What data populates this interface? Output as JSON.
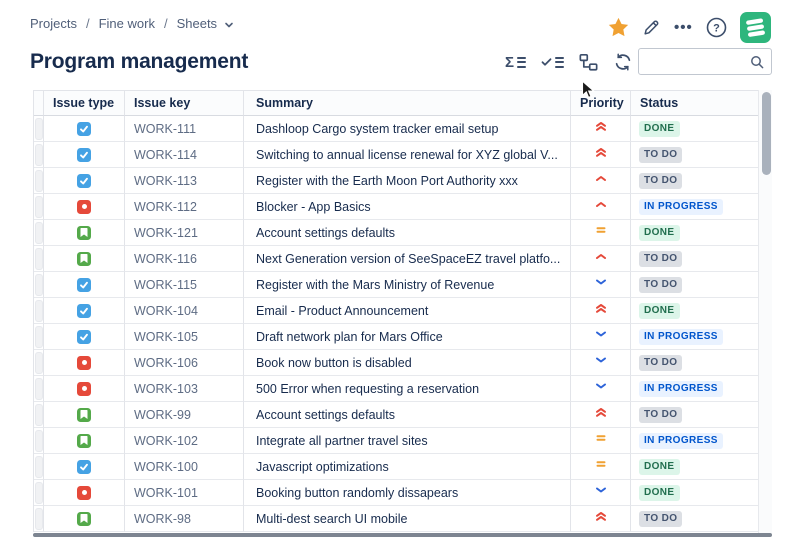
{
  "breadcrumb": {
    "items": [
      "Projects",
      "Fine work",
      "Sheets"
    ],
    "separator": "/"
  },
  "page_title": "Program management",
  "top_actions": {
    "icons": [
      "star-icon",
      "pencil-icon",
      "more-icon",
      "help-icon",
      "app-logo"
    ],
    "more_glyph": "•••"
  },
  "toolbar": {
    "icons": [
      "sum-rows-icon",
      "checklist-icon",
      "hierarchy-icon",
      "refresh-icon"
    ],
    "search": {
      "value": "",
      "placeholder": ""
    }
  },
  "table": {
    "columns": [
      "Issue type",
      "Issue key",
      "Summary",
      "Priority",
      "Status"
    ],
    "rows": [
      {
        "type": "task",
        "key": "WORK-111",
        "summary": "Dashloop Cargo system tracker email setup",
        "priority": "highest",
        "status": "DONE"
      },
      {
        "type": "task",
        "key": "WORK-114",
        "summary": "Switching to annual license renewal for XYZ global V...",
        "priority": "highest",
        "status": "TO DO"
      },
      {
        "type": "task",
        "key": "WORK-113",
        "summary": "Register with the Earth Moon Port Authority xxx",
        "priority": "high",
        "status": "TO DO"
      },
      {
        "type": "bug",
        "key": "WORK-112",
        "summary": "Blocker - App Basics",
        "priority": "high",
        "status": "IN PROGRESS"
      },
      {
        "type": "story",
        "key": "WORK-121",
        "summary": "Account settings defaults",
        "priority": "medium",
        "status": "DONE"
      },
      {
        "type": "story",
        "key": "WORK-116",
        "summary": "Next Generation version of SeeSpaceEZ travel platfo...",
        "priority": "high",
        "status": "TO DO"
      },
      {
        "type": "task",
        "key": "WORK-115",
        "summary": "Register with the Mars Ministry of Revenue",
        "priority": "low",
        "status": "TO DO"
      },
      {
        "type": "task",
        "key": "WORK-104",
        "summary": "Email - Product Announcement",
        "priority": "highest",
        "status": "DONE"
      },
      {
        "type": "task",
        "key": "WORK-105",
        "summary": "Draft network plan for Mars Office",
        "priority": "low",
        "status": "IN PROGRESS"
      },
      {
        "type": "bug",
        "key": "WORK-106",
        "summary": "Book now button is disabled",
        "priority": "low",
        "status": "TO DO"
      },
      {
        "type": "bug",
        "key": "WORK-103",
        "summary": "500 Error when requesting a reservation",
        "priority": "low",
        "status": "IN PROGRESS"
      },
      {
        "type": "story",
        "key": "WORK-99",
        "summary": "Account settings defaults",
        "priority": "highest",
        "status": "TO DO"
      },
      {
        "type": "story",
        "key": "WORK-102",
        "summary": "Integrate all partner travel sites",
        "priority": "medium",
        "status": "IN PROGRESS"
      },
      {
        "type": "task",
        "key": "WORK-100",
        "summary": "Javascript optimizations",
        "priority": "medium",
        "status": "DONE"
      },
      {
        "type": "bug",
        "key": "WORK-101",
        "summary": "Booking button randomly dissapears",
        "priority": "low",
        "status": "DONE"
      },
      {
        "type": "story",
        "key": "WORK-98",
        "summary": "Multi-dest search UI mobile",
        "priority": "highest",
        "status": "TO DO"
      }
    ]
  },
  "colors": {
    "accent_navy": "#172B4D",
    "star": "#F0A132",
    "logo_green": "#2EB67D",
    "issue_types": {
      "task": "#45A2E4",
      "bug": "#E5493A",
      "story": "#54A94A"
    },
    "priority": {
      "highest": "#E5493A",
      "high": "#E5493A",
      "medium": "#F0A132",
      "low": "#2E64D9"
    },
    "status": {
      "DONE": {
        "bg": "#DCF5E9",
        "fg": "#216E4E"
      },
      "TO DO": {
        "bg": "#DCDFE4",
        "fg": "#44546F"
      },
      "IN PROGRESS": {
        "bg": "#E9F2FF",
        "fg": "#0055CC"
      }
    }
  }
}
